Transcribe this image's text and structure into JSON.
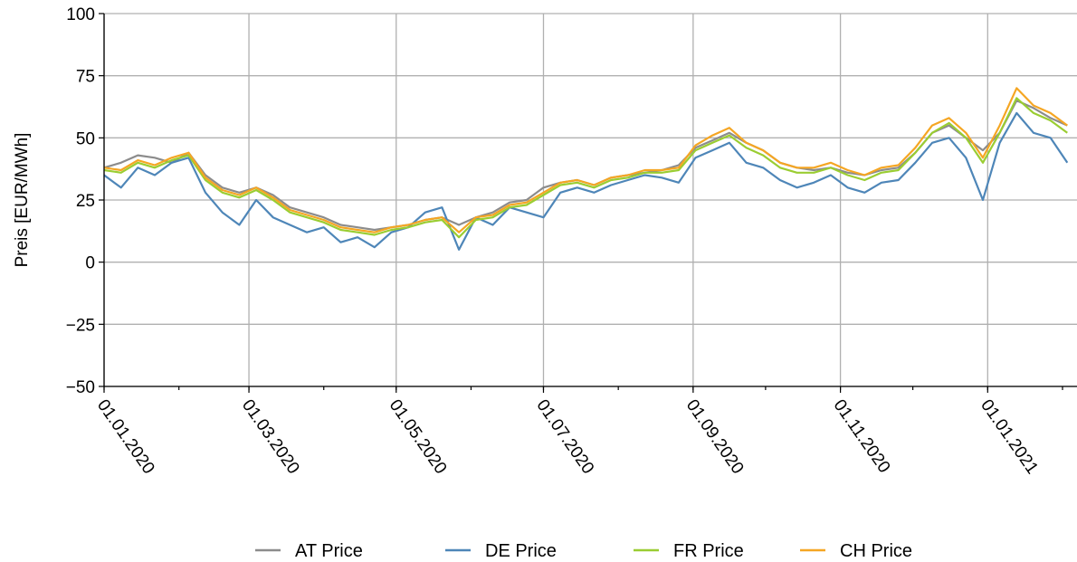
{
  "chart_data": {
    "type": "line",
    "ylabel": "Preis [EUR/MWh]",
    "xlabel": "",
    "ylim": [
      -50,
      100
    ],
    "xlim": [
      "2020-01-01",
      "2021-02-07"
    ],
    "yticks": [
      -50,
      -25,
      0,
      25,
      50,
      75,
      100
    ],
    "ytick_labels": [
      "−50",
      "−25",
      "0",
      "25",
      "50",
      "75",
      "100"
    ],
    "xticks": [
      "2020-01-01",
      "2020-03-01",
      "2020-05-01",
      "2020-07-01",
      "2020-09-01",
      "2020-11-01",
      "2021-01-01"
    ],
    "xtick_labels": [
      "01.01.2020",
      "01.03.2020",
      "01.05.2020",
      "01.07.2020",
      "01.09.2020",
      "01.11.2020",
      "01.01.2021"
    ],
    "grid": true,
    "legend_position": "bottom",
    "series": [
      {
        "name": "AT Price",
        "color": "#8c8c8c",
        "points": [
          [
            "2020-01-01",
            38
          ],
          [
            "2020-01-08",
            40
          ],
          [
            "2020-01-15",
            43
          ],
          [
            "2020-01-22",
            42
          ],
          [
            "2020-01-29",
            40
          ],
          [
            "2020-02-05",
            44
          ],
          [
            "2020-02-12",
            35
          ],
          [
            "2020-02-19",
            30
          ],
          [
            "2020-02-26",
            28
          ],
          [
            "2020-03-04",
            30
          ],
          [
            "2020-03-11",
            27
          ],
          [
            "2020-03-18",
            22
          ],
          [
            "2020-03-25",
            20
          ],
          [
            "2020-04-01",
            18
          ],
          [
            "2020-04-08",
            15
          ],
          [
            "2020-04-15",
            14
          ],
          [
            "2020-04-22",
            13
          ],
          [
            "2020-04-29",
            14
          ],
          [
            "2020-05-06",
            15
          ],
          [
            "2020-05-13",
            17
          ],
          [
            "2020-05-20",
            18
          ],
          [
            "2020-05-27",
            15
          ],
          [
            "2020-06-03",
            18
          ],
          [
            "2020-06-10",
            20
          ],
          [
            "2020-06-17",
            24
          ],
          [
            "2020-06-24",
            25
          ],
          [
            "2020-07-01",
            30
          ],
          [
            "2020-07-08",
            32
          ],
          [
            "2020-07-15",
            33
          ],
          [
            "2020-07-22",
            31
          ],
          [
            "2020-07-29",
            34
          ],
          [
            "2020-08-05",
            35
          ],
          [
            "2020-08-12",
            36
          ],
          [
            "2020-08-19",
            37
          ],
          [
            "2020-08-26",
            39
          ],
          [
            "2020-09-02",
            46
          ],
          [
            "2020-09-09",
            49
          ],
          [
            "2020-09-16",
            52
          ],
          [
            "2020-09-23",
            48
          ],
          [
            "2020-09-30",
            45
          ],
          [
            "2020-10-07",
            40
          ],
          [
            "2020-10-14",
            38
          ],
          [
            "2020-10-21",
            37
          ],
          [
            "2020-10-28",
            38
          ],
          [
            "2020-11-04",
            36
          ],
          [
            "2020-11-11",
            35
          ],
          [
            "2020-11-18",
            37
          ],
          [
            "2020-11-25",
            38
          ],
          [
            "2020-12-02",
            44
          ],
          [
            "2020-12-09",
            52
          ],
          [
            "2020-12-16",
            55
          ],
          [
            "2020-12-23",
            50
          ],
          [
            "2020-12-30",
            45
          ],
          [
            "2021-01-06",
            52
          ],
          [
            "2021-01-13",
            65
          ],
          [
            "2021-01-20",
            62
          ],
          [
            "2021-01-27",
            58
          ],
          [
            "2021-02-03",
            55
          ]
        ]
      },
      {
        "name": "DE Price",
        "color": "#4e86b8",
        "points": [
          [
            "2020-01-01",
            35
          ],
          [
            "2020-01-08",
            30
          ],
          [
            "2020-01-15",
            38
          ],
          [
            "2020-01-22",
            35
          ],
          [
            "2020-01-29",
            40
          ],
          [
            "2020-02-05",
            42
          ],
          [
            "2020-02-12",
            28
          ],
          [
            "2020-02-19",
            20
          ],
          [
            "2020-02-26",
            15
          ],
          [
            "2020-03-04",
            25
          ],
          [
            "2020-03-11",
            18
          ],
          [
            "2020-03-18",
            15
          ],
          [
            "2020-03-25",
            12
          ],
          [
            "2020-04-01",
            14
          ],
          [
            "2020-04-08",
            8
          ],
          [
            "2020-04-15",
            10
          ],
          [
            "2020-04-22",
            6
          ],
          [
            "2020-04-29",
            12
          ],
          [
            "2020-05-06",
            14
          ],
          [
            "2020-05-13",
            20
          ],
          [
            "2020-05-20",
            22
          ],
          [
            "2020-05-27",
            5
          ],
          [
            "2020-06-03",
            18
          ],
          [
            "2020-06-10",
            15
          ],
          [
            "2020-06-17",
            22
          ],
          [
            "2020-06-24",
            20
          ],
          [
            "2020-07-01",
            18
          ],
          [
            "2020-07-08",
            28
          ],
          [
            "2020-07-15",
            30
          ],
          [
            "2020-07-22",
            28
          ],
          [
            "2020-07-29",
            31
          ],
          [
            "2020-08-05",
            33
          ],
          [
            "2020-08-12",
            35
          ],
          [
            "2020-08-19",
            34
          ],
          [
            "2020-08-26",
            32
          ],
          [
            "2020-09-02",
            42
          ],
          [
            "2020-09-09",
            45
          ],
          [
            "2020-09-16",
            48
          ],
          [
            "2020-09-23",
            40
          ],
          [
            "2020-09-30",
            38
          ],
          [
            "2020-10-07",
            33
          ],
          [
            "2020-10-14",
            30
          ],
          [
            "2020-10-21",
            32
          ],
          [
            "2020-10-28",
            35
          ],
          [
            "2020-11-04",
            30
          ],
          [
            "2020-11-11",
            28
          ],
          [
            "2020-11-18",
            32
          ],
          [
            "2020-11-25",
            33
          ],
          [
            "2020-12-02",
            40
          ],
          [
            "2020-12-09",
            48
          ],
          [
            "2020-12-16",
            50
          ],
          [
            "2020-12-23",
            42
          ],
          [
            "2020-12-30",
            25
          ],
          [
            "2021-01-06",
            48
          ],
          [
            "2021-01-13",
            60
          ],
          [
            "2021-01-20",
            52
          ],
          [
            "2021-01-27",
            50
          ],
          [
            "2021-02-03",
            40
          ]
        ]
      },
      {
        "name": "FR Price",
        "color": "#9acd32",
        "points": [
          [
            "2020-01-01",
            37
          ],
          [
            "2020-01-08",
            36
          ],
          [
            "2020-01-15",
            40
          ],
          [
            "2020-01-22",
            38
          ],
          [
            "2020-01-29",
            41
          ],
          [
            "2020-02-05",
            43
          ],
          [
            "2020-02-12",
            33
          ],
          [
            "2020-02-19",
            28
          ],
          [
            "2020-02-26",
            26
          ],
          [
            "2020-03-04",
            29
          ],
          [
            "2020-03-11",
            25
          ],
          [
            "2020-03-18",
            20
          ],
          [
            "2020-03-25",
            18
          ],
          [
            "2020-04-01",
            16
          ],
          [
            "2020-04-08",
            13
          ],
          [
            "2020-04-15",
            12
          ],
          [
            "2020-04-22",
            11
          ],
          [
            "2020-04-29",
            13
          ],
          [
            "2020-05-06",
            14
          ],
          [
            "2020-05-13",
            16
          ],
          [
            "2020-05-20",
            17
          ],
          [
            "2020-05-27",
            10
          ],
          [
            "2020-06-03",
            17
          ],
          [
            "2020-06-10",
            18
          ],
          [
            "2020-06-17",
            22
          ],
          [
            "2020-06-24",
            23
          ],
          [
            "2020-07-01",
            27
          ],
          [
            "2020-07-08",
            31
          ],
          [
            "2020-07-15",
            32
          ],
          [
            "2020-07-22",
            30
          ],
          [
            "2020-07-29",
            33
          ],
          [
            "2020-08-05",
            34
          ],
          [
            "2020-08-12",
            36
          ],
          [
            "2020-08-19",
            36
          ],
          [
            "2020-08-26",
            37
          ],
          [
            "2020-09-02",
            45
          ],
          [
            "2020-09-09",
            48
          ],
          [
            "2020-09-16",
            51
          ],
          [
            "2020-09-23",
            46
          ],
          [
            "2020-09-30",
            43
          ],
          [
            "2020-10-07",
            38
          ],
          [
            "2020-10-14",
            36
          ],
          [
            "2020-10-21",
            36
          ],
          [
            "2020-10-28",
            38
          ],
          [
            "2020-11-04",
            35
          ],
          [
            "2020-11-11",
            33
          ],
          [
            "2020-11-18",
            36
          ],
          [
            "2020-11-25",
            37
          ],
          [
            "2020-12-02",
            44
          ],
          [
            "2020-12-09",
            52
          ],
          [
            "2020-12-16",
            56
          ],
          [
            "2020-12-23",
            50
          ],
          [
            "2020-12-30",
            40
          ],
          [
            "2021-01-06",
            52
          ],
          [
            "2021-01-13",
            66
          ],
          [
            "2021-01-20",
            60
          ],
          [
            "2021-01-27",
            57
          ],
          [
            "2021-02-03",
            52
          ]
        ]
      },
      {
        "name": "CH Price",
        "color": "#f5a623",
        "points": [
          [
            "2020-01-01",
            38
          ],
          [
            "2020-01-08",
            37
          ],
          [
            "2020-01-15",
            41
          ],
          [
            "2020-01-22",
            39
          ],
          [
            "2020-01-29",
            42
          ],
          [
            "2020-02-05",
            44
          ],
          [
            "2020-02-12",
            34
          ],
          [
            "2020-02-19",
            29
          ],
          [
            "2020-02-26",
            27
          ],
          [
            "2020-03-04",
            30
          ],
          [
            "2020-03-11",
            26
          ],
          [
            "2020-03-18",
            21
          ],
          [
            "2020-03-25",
            19
          ],
          [
            "2020-04-01",
            17
          ],
          [
            "2020-04-08",
            14
          ],
          [
            "2020-04-15",
            13
          ],
          [
            "2020-04-22",
            12
          ],
          [
            "2020-04-29",
            14
          ],
          [
            "2020-05-06",
            15
          ],
          [
            "2020-05-13",
            17
          ],
          [
            "2020-05-20",
            18
          ],
          [
            "2020-05-27",
            12
          ],
          [
            "2020-06-03",
            18
          ],
          [
            "2020-06-10",
            19
          ],
          [
            "2020-06-17",
            23
          ],
          [
            "2020-06-24",
            24
          ],
          [
            "2020-07-01",
            28
          ],
          [
            "2020-07-08",
            32
          ],
          [
            "2020-07-15",
            33
          ],
          [
            "2020-07-22",
            31
          ],
          [
            "2020-07-29",
            34
          ],
          [
            "2020-08-05",
            35
          ],
          [
            "2020-08-12",
            37
          ],
          [
            "2020-08-19",
            37
          ],
          [
            "2020-08-26",
            38
          ],
          [
            "2020-09-02",
            47
          ],
          [
            "2020-09-09",
            51
          ],
          [
            "2020-09-16",
            54
          ],
          [
            "2020-09-23",
            48
          ],
          [
            "2020-09-30",
            45
          ],
          [
            "2020-10-07",
            40
          ],
          [
            "2020-10-14",
            38
          ],
          [
            "2020-10-21",
            38
          ],
          [
            "2020-10-28",
            40
          ],
          [
            "2020-11-04",
            37
          ],
          [
            "2020-11-11",
            35
          ],
          [
            "2020-11-18",
            38
          ],
          [
            "2020-11-25",
            39
          ],
          [
            "2020-12-02",
            46
          ],
          [
            "2020-12-09",
            55
          ],
          [
            "2020-12-16",
            58
          ],
          [
            "2020-12-23",
            52
          ],
          [
            "2020-12-30",
            42
          ],
          [
            "2021-01-06",
            55
          ],
          [
            "2021-01-13",
            70
          ],
          [
            "2021-01-20",
            63
          ],
          [
            "2021-01-27",
            60
          ],
          [
            "2021-02-03",
            55
          ]
        ]
      }
    ]
  }
}
